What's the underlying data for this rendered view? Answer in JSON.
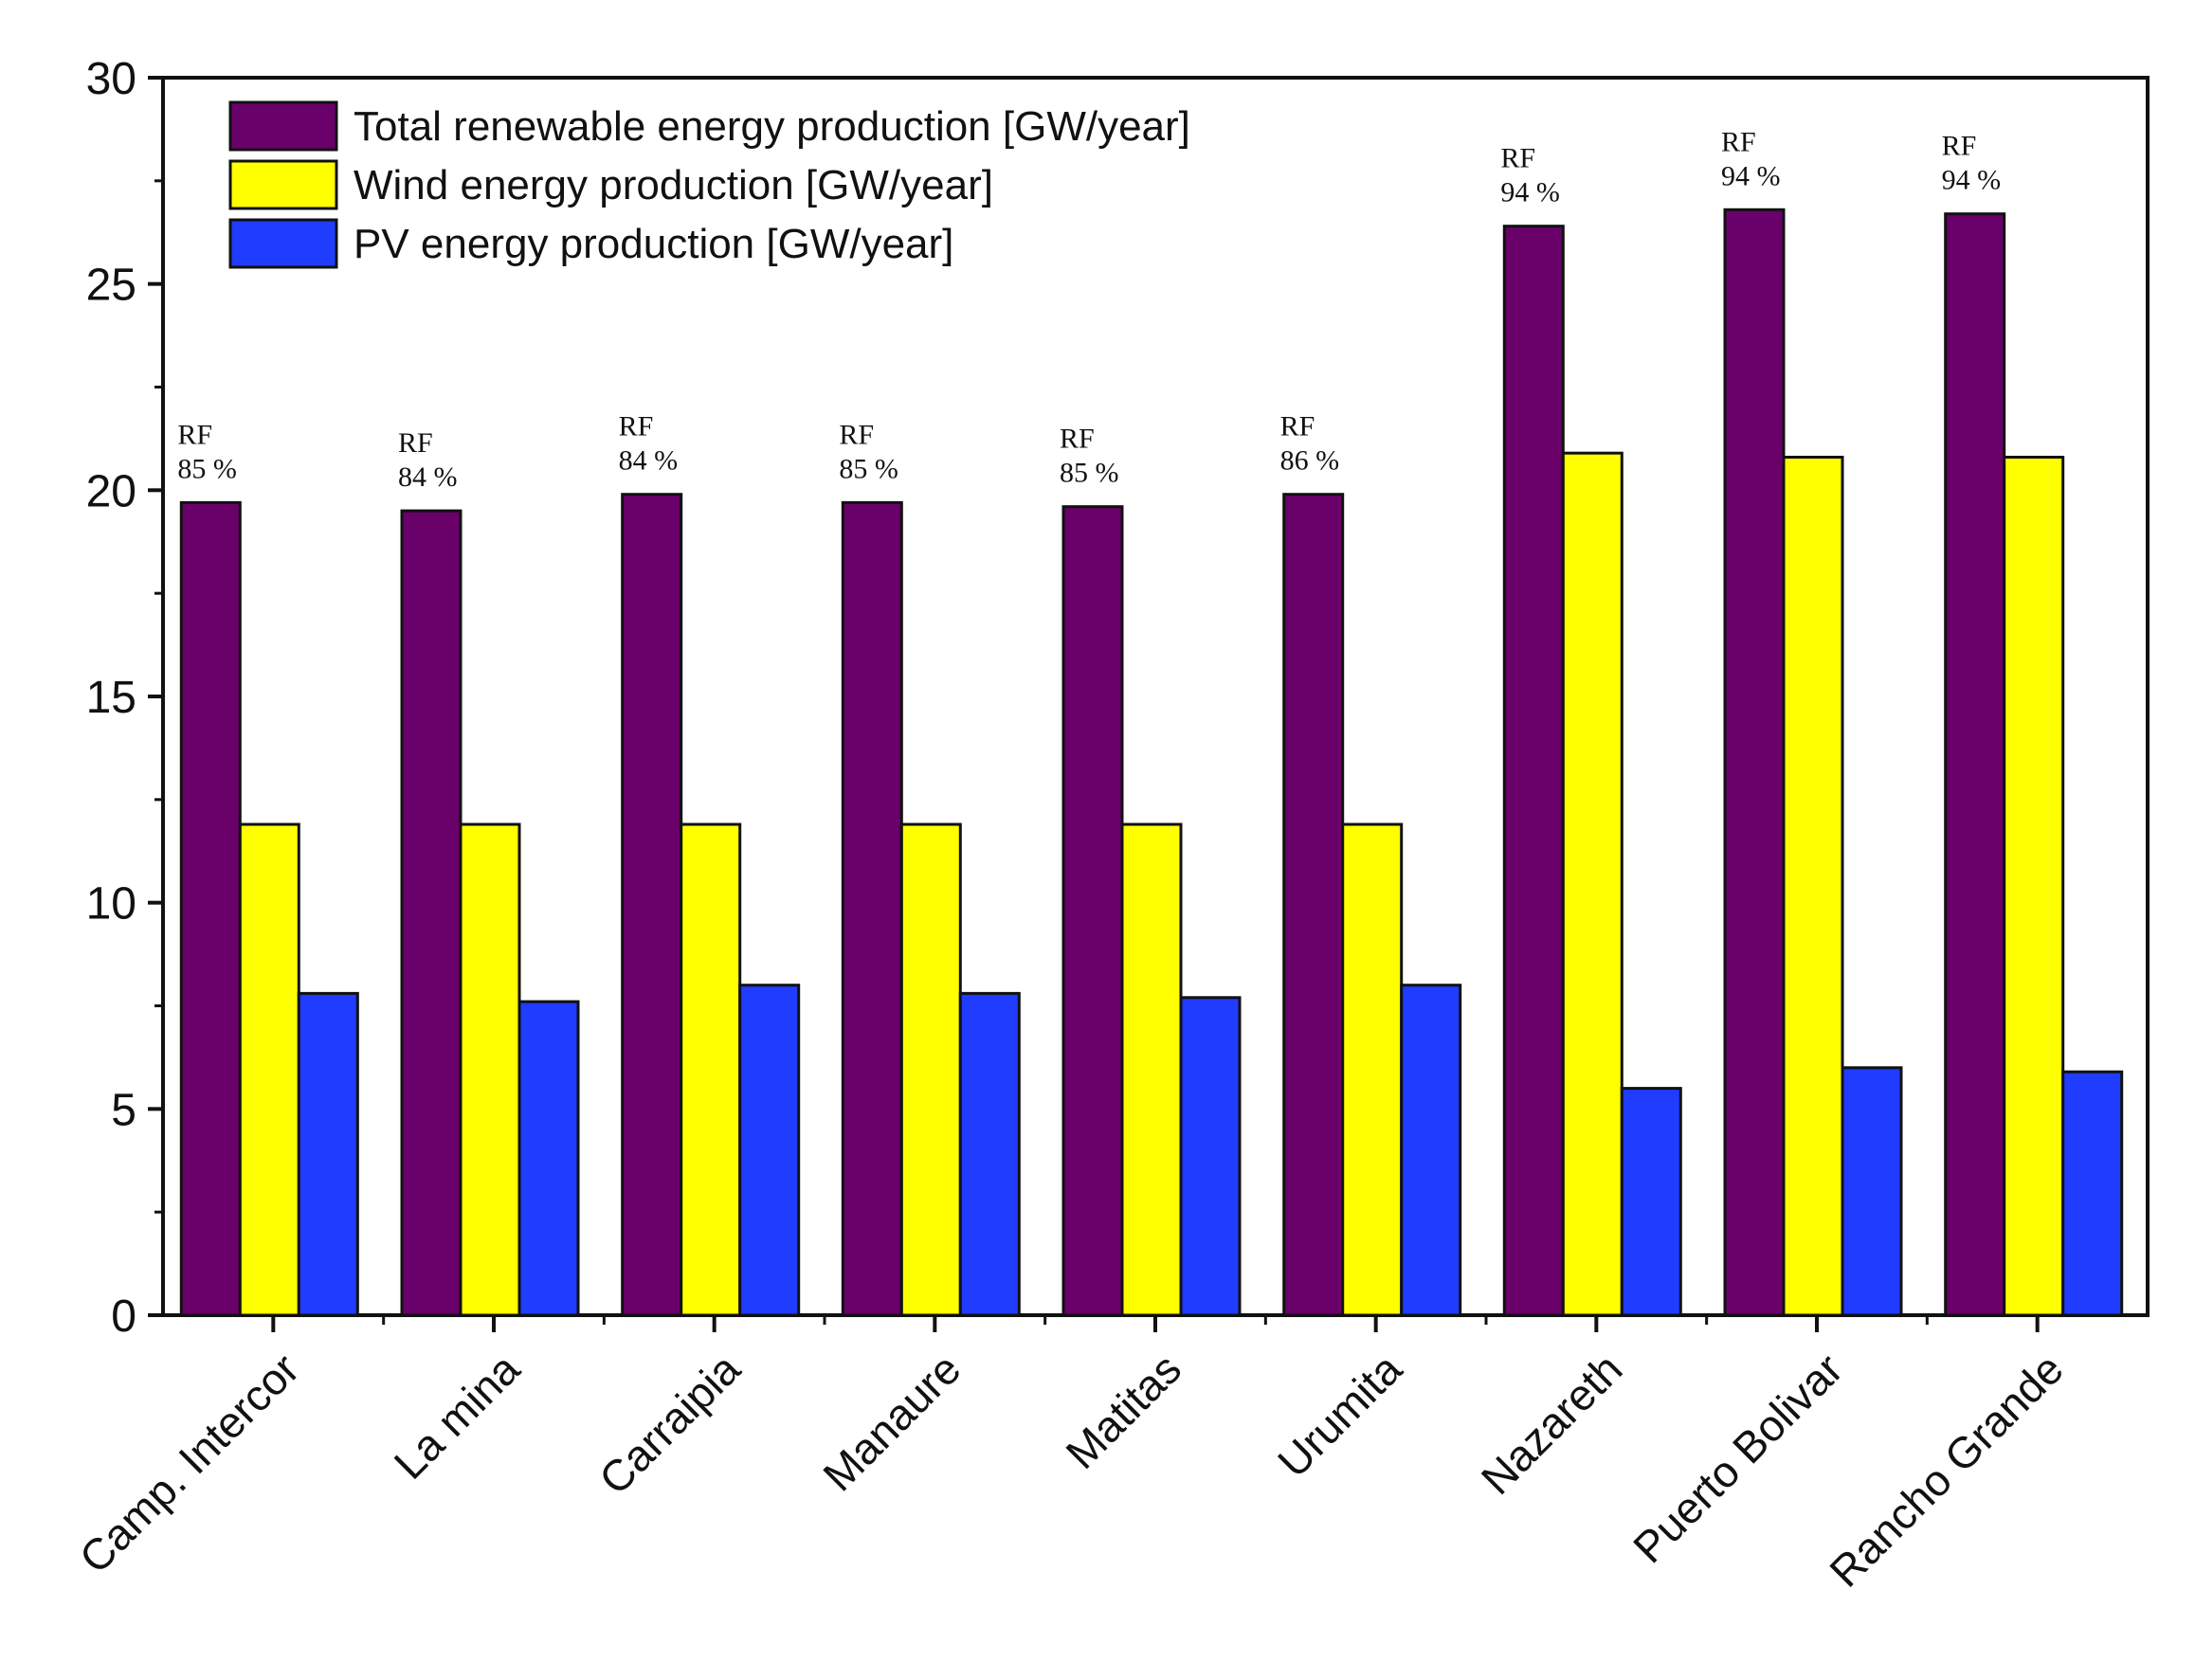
{
  "chart_data": {
    "type": "bar",
    "title": "",
    "xlabel": "",
    "ylabel": "",
    "ylim": [
      0,
      30
    ],
    "yticks": [
      0,
      5,
      10,
      15,
      20,
      25,
      30
    ],
    "grid": false,
    "legend_position": "top-left",
    "categories": [
      "Camp. Intercor",
      "La mina",
      "Carraipia",
      "Manaure",
      "Matitas",
      "Urumita",
      "Nazareth",
      "Puerto Bolivar",
      "Rancho Grande"
    ],
    "series": [
      {
        "name": "Total renewable energy production [GW/year]",
        "color": "#6a006a",
        "values": [
          19.7,
          19.5,
          19.9,
          19.7,
          19.6,
          19.9,
          26.4,
          26.8,
          26.7
        ]
      },
      {
        "name": "Wind energy production [GW/year]",
        "color": "#ffff00",
        "values": [
          11.9,
          11.9,
          11.9,
          11.9,
          11.9,
          11.9,
          20.9,
          20.8,
          20.8
        ]
      },
      {
        "name": "PV energy production [GW/year]",
        "color": "#1f3cff",
        "values": [
          7.8,
          7.6,
          8.0,
          7.8,
          7.7,
          8.0,
          5.5,
          6.0,
          5.9
        ]
      }
    ],
    "annotations": [
      {
        "line1": "RF",
        "line2": "85 %"
      },
      {
        "line1": "RF",
        "line2": "84 %"
      },
      {
        "line1": "RF",
        "line2": "84 %"
      },
      {
        "line1": "RF",
        "line2": "85 %"
      },
      {
        "line1": "RF",
        "line2": "85 %"
      },
      {
        "line1": "RF",
        "line2": "86 %"
      },
      {
        "line1": "RF",
        "line2": "94 %"
      },
      {
        "line1": "RF",
        "line2": "94 %"
      },
      {
        "line1": "RF",
        "line2": "94 %"
      }
    ]
  }
}
